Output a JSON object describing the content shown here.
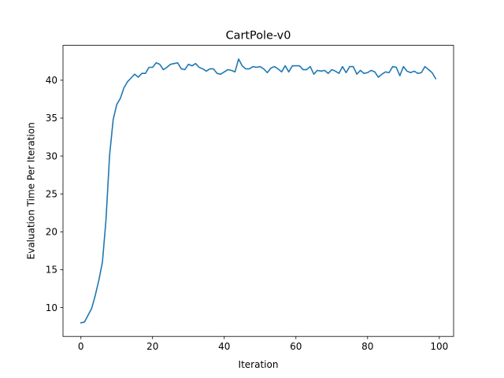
{
  "chart_data": {
    "type": "line",
    "title": "CartPole-v0",
    "xlabel": "Iteration",
    "ylabel": "Evaluation Time Per Iteration",
    "xlim": [
      -5,
      104
    ],
    "ylim": [
      6.2,
      44.6
    ],
    "xticks": [
      0,
      20,
      40,
      60,
      80,
      100
    ],
    "yticks": [
      10,
      15,
      20,
      25,
      30,
      35,
      40
    ],
    "grid": false,
    "line_color": "#1f77b4",
    "series": [
      {
        "x": [
          0,
          1,
          2,
          3,
          4,
          5,
          6,
          7,
          8,
          9,
          10,
          11,
          12,
          13,
          14,
          15,
          16,
          17,
          18,
          19,
          20,
          21,
          22,
          23,
          24,
          25,
          26,
          27,
          28,
          29,
          30,
          31,
          32,
          33,
          34,
          35,
          36,
          37,
          38,
          39,
          40,
          41,
          42,
          43,
          44,
          45,
          46,
          47,
          48,
          49,
          50,
          51,
          52,
          53,
          54,
          55,
          56,
          57,
          58,
          59,
          60,
          61,
          62,
          63,
          64,
          65,
          66,
          67,
          68,
          69,
          70,
          71,
          72,
          73,
          74,
          75,
          76,
          77,
          78,
          79,
          80,
          81,
          82,
          83,
          84,
          85,
          86,
          87,
          88,
          89,
          90,
          91,
          92,
          93,
          94,
          95,
          96,
          97,
          98,
          99
        ],
        "values": [
          8.0,
          8.1,
          9.0,
          9.9,
          11.6,
          13.6,
          16.0,
          21.6,
          30.1,
          34.8,
          36.8,
          37.6,
          39.0,
          39.8,
          40.3,
          40.8,
          40.4,
          40.9,
          40.9,
          41.7,
          41.7,
          42.3,
          42.1,
          41.4,
          41.7,
          42.1,
          42.2,
          42.3,
          41.5,
          41.4,
          42.1,
          41.9,
          42.2,
          41.7,
          41.5,
          41.2,
          41.5,
          41.5,
          40.9,
          40.8,
          41.1,
          41.4,
          41.3,
          41.1,
          42.8,
          41.9,
          41.5,
          41.5,
          41.8,
          41.7,
          41.8,
          41.5,
          41.0,
          41.6,
          41.8,
          41.5,
          41.1,
          41.9,
          41.1,
          41.9,
          41.9,
          41.9,
          41.4,
          41.4,
          41.8,
          40.8,
          41.3,
          41.2,
          41.3,
          40.9,
          41.4,
          41.2,
          40.9,
          41.8,
          41.0,
          41.8,
          41.8,
          40.8,
          41.3,
          40.9,
          41.0,
          41.3,
          41.1,
          40.4,
          40.8,
          41.1,
          41.0,
          41.8,
          41.7,
          40.6,
          41.8,
          41.2,
          41.0,
          41.2,
          40.9,
          41.0,
          41.8,
          41.4,
          41.0,
          40.2
        ]
      }
    ]
  }
}
